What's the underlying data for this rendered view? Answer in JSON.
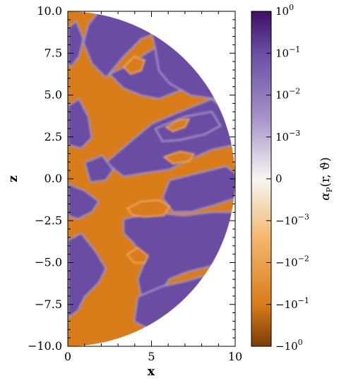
{
  "chart_data": {
    "type": "heatmap",
    "title": "",
    "xlabel": "x",
    "ylabel": "z",
    "xlim": [
      0,
      10
    ],
    "ylim": [
      -10,
      10
    ],
    "x_ticks": [
      {
        "value": 0,
        "label": "0"
      },
      {
        "value": 5,
        "label": "5"
      },
      {
        "value": 10,
        "label": "10"
      }
    ],
    "y_ticks": [
      {
        "value": 10,
        "label": "10.0"
      },
      {
        "value": 7.5,
        "label": "7.5"
      },
      {
        "value": 5,
        "label": "5.0"
      },
      {
        "value": 2.5,
        "label": "2.5"
      },
      {
        "value": 0,
        "label": "0.0"
      },
      {
        "value": -2.5,
        "label": "−2.5"
      },
      {
        "value": -5,
        "label": "−5.0"
      },
      {
        "value": -7.5,
        "label": "−7.5"
      },
      {
        "value": -10,
        "label": "−10.0"
      }
    ],
    "domain_shape": "half-disk of radius 10 in x ≥ 0",
    "colorbar": {
      "title": "αP(r, ϑ)",
      "title_main": "α",
      "title_sub": "P",
      "title_args": "(r, ϑ)",
      "scale": "symlog",
      "ticks": [
        {
          "value": 1,
          "base": "10",
          "exp": "0"
        },
        {
          "value": 0.1,
          "base": "10",
          "exp": "−1"
        },
        {
          "value": 0.01,
          "base": "10",
          "exp": "−2"
        },
        {
          "value": 0.001,
          "base": "10",
          "exp": "−3"
        },
        {
          "value": 0,
          "base": "0",
          "exp": ""
        },
        {
          "value": -0.001,
          "base": "−10",
          "exp": "−3"
        },
        {
          "value": -0.01,
          "base": "−10",
          "exp": "−2"
        },
        {
          "value": -0.1,
          "base": "−10",
          "exp": "−1"
        },
        {
          "value": -1,
          "base": "−10",
          "exp": "0"
        }
      ],
      "colors": {
        "max": "#3f0f63",
        "high": "#6a4ea3",
        "mid_high": "#a594c8",
        "zero": "#f7f6f3",
        "mid_low": "#f3b66c",
        "low": "#d97c1a",
        "min": "#7a3d07"
      }
    }
  }
}
